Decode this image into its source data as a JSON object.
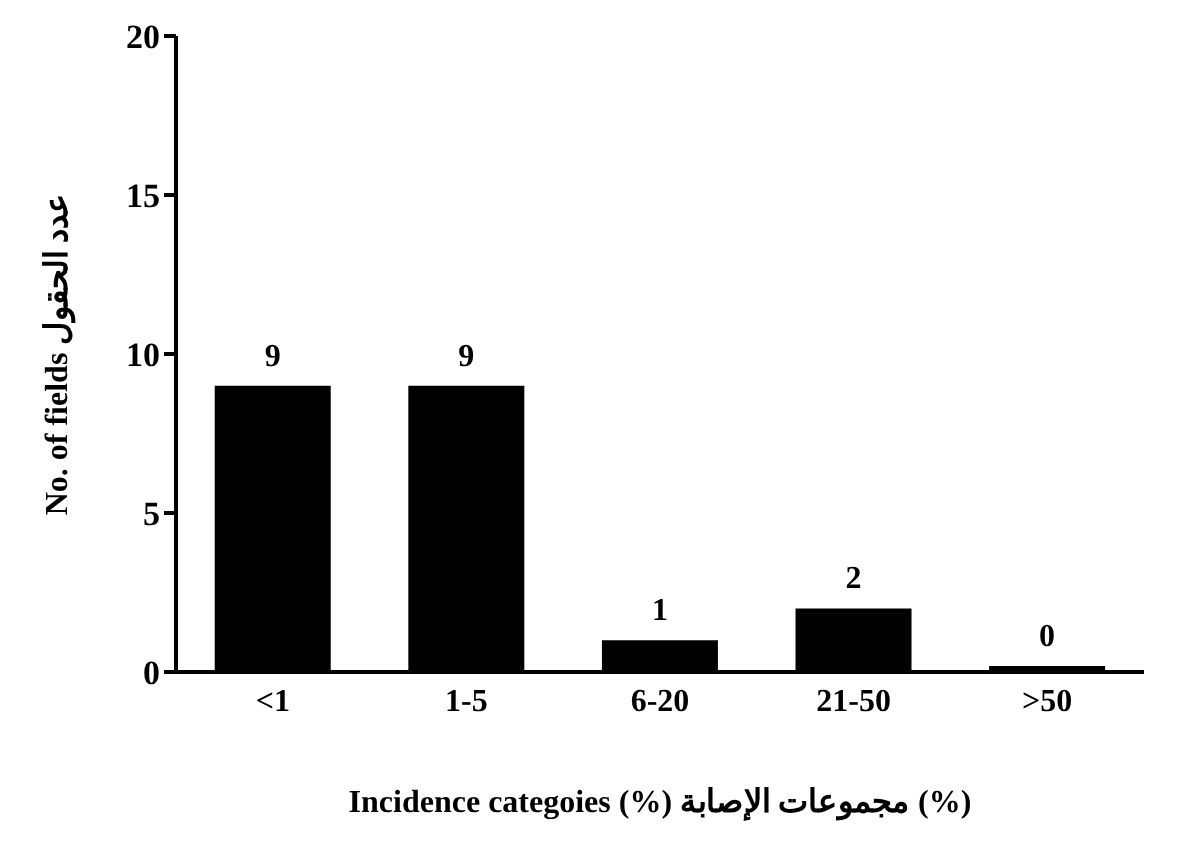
{
  "chart_data": {
    "type": "bar",
    "xlabel": "Incidence categoies (%)   مجموعات الإصابة (%)",
    "ylabel": "No. of fields   عدد الحقول",
    "categories": [
      "<1",
      "1-5",
      "6-20",
      "21-50",
      ">50"
    ],
    "values": [
      9,
      9,
      1,
      2,
      0
    ],
    "color": "#000000",
    "ylim": [
      0,
      20
    ],
    "yticks": [
      0,
      5,
      10,
      15,
      20
    ],
    "data_labels": true,
    "grid": false,
    "legend": false
  }
}
